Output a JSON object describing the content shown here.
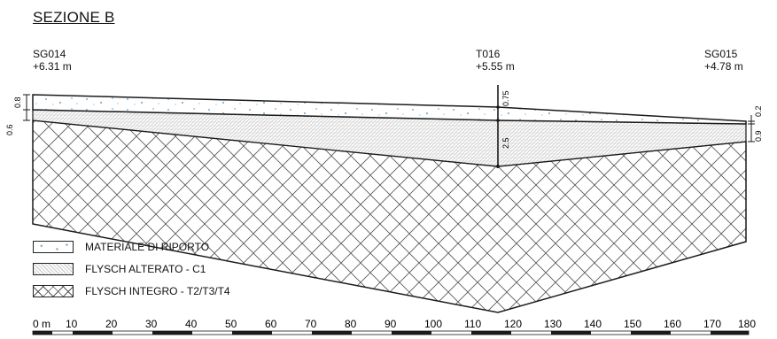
{
  "title": "SEZIONE B",
  "boreholes": [
    {
      "id": "SG014",
      "elevation": "+6.31 m"
    },
    {
      "id": "T016",
      "elevation": "+5.55 m"
    },
    {
      "id": "SG015",
      "elevation": "+4.78 m"
    }
  ],
  "thickness_labels": {
    "sg014_top": "0.8",
    "sg014_bottom": "0.6",
    "t016_top": "0.75",
    "t016_bottom": "2.5",
    "sg015_top": "0.2",
    "sg015_bottom": "0.9"
  },
  "legend": [
    {
      "label": "MATERIALE DI RIPORTO",
      "pattern": "speckle"
    },
    {
      "label": "FLYSCH ALTERATO - C1",
      "pattern": "dense-hatch"
    },
    {
      "label": "FLYSCH INTEGRO - T2/T3/T4",
      "pattern": "crosshatch"
    }
  ],
  "scale": {
    "ticks": [
      "0 m",
      "10",
      "20",
      "30",
      "40",
      "50",
      "60",
      "70",
      "80",
      "90",
      "100",
      "110",
      "120",
      "130",
      "140",
      "150",
      "160",
      "170",
      "180"
    ]
  },
  "colors": {
    "line": "#1a1a1a",
    "speckle": "#7fb0d6",
    "hatch": "#555555"
  }
}
